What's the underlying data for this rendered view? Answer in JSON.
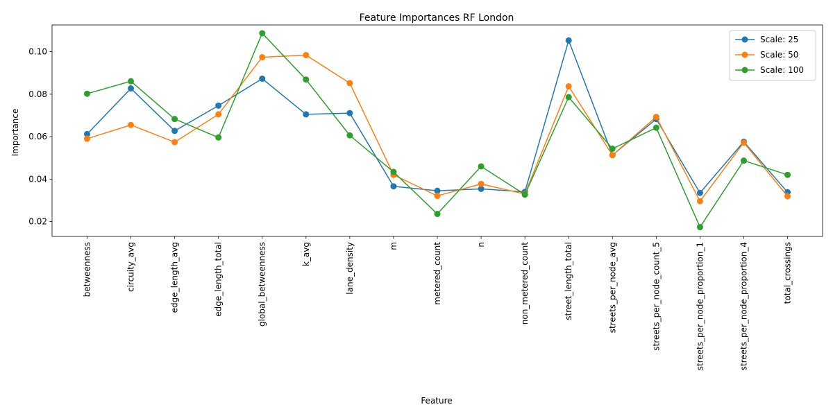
{
  "chart_data": {
    "type": "line",
    "title": "Feature Importances RF London",
    "xlabel": "Feature",
    "ylabel": "Importance",
    "categories": [
      "betweenness",
      "circuity_avg",
      "edge_length_avg",
      "edge_length_total",
      "global_betweenness",
      "k_avg",
      "lane_density",
      "m",
      "metered_count",
      "n",
      "non_metered_count",
      "street_length_total",
      "streets_per_node_avg",
      "streets_per_node_count_5",
      "streets_per_node_proportion_1",
      "streets_per_node_proportion_4",
      "total_crossings"
    ],
    "series": [
      {
        "name": "Scale: 25",
        "color": "#1f77b4",
        "values": [
          0.0612,
          0.0827,
          0.0627,
          0.0746,
          0.0873,
          0.0705,
          0.0711,
          0.0366,
          0.0345,
          0.0354,
          0.034,
          0.1053,
          0.0513,
          0.0683,
          0.0335,
          0.0576,
          0.0338
        ]
      },
      {
        "name": "Scale: 50",
        "color": "#ff7f0e",
        "values": [
          0.059,
          0.0655,
          0.0574,
          0.0705,
          0.0974,
          0.0984,
          0.0852,
          0.042,
          0.0321,
          0.0377,
          0.033,
          0.0837,
          0.0513,
          0.0693,
          0.0296,
          0.0572,
          0.0319
        ]
      },
      {
        "name": "Scale: 100",
        "color": "#2ca02c",
        "values": [
          0.0802,
          0.0861,
          0.0683,
          0.0596,
          0.1087,
          0.0869,
          0.0606,
          0.0434,
          0.0236,
          0.046,
          0.0327,
          0.0786,
          0.0543,
          0.0642,
          0.0174,
          0.0487,
          0.042
        ]
      }
    ],
    "ylim": [
      0.013,
      0.1126
    ],
    "yticks": [
      0.02,
      0.04,
      0.06,
      0.08,
      0.1
    ],
    "ytick_labels": [
      "0.02",
      "0.04",
      "0.06",
      "0.08",
      "0.10"
    ],
    "grid": false,
    "legend_position": "top-right"
  }
}
